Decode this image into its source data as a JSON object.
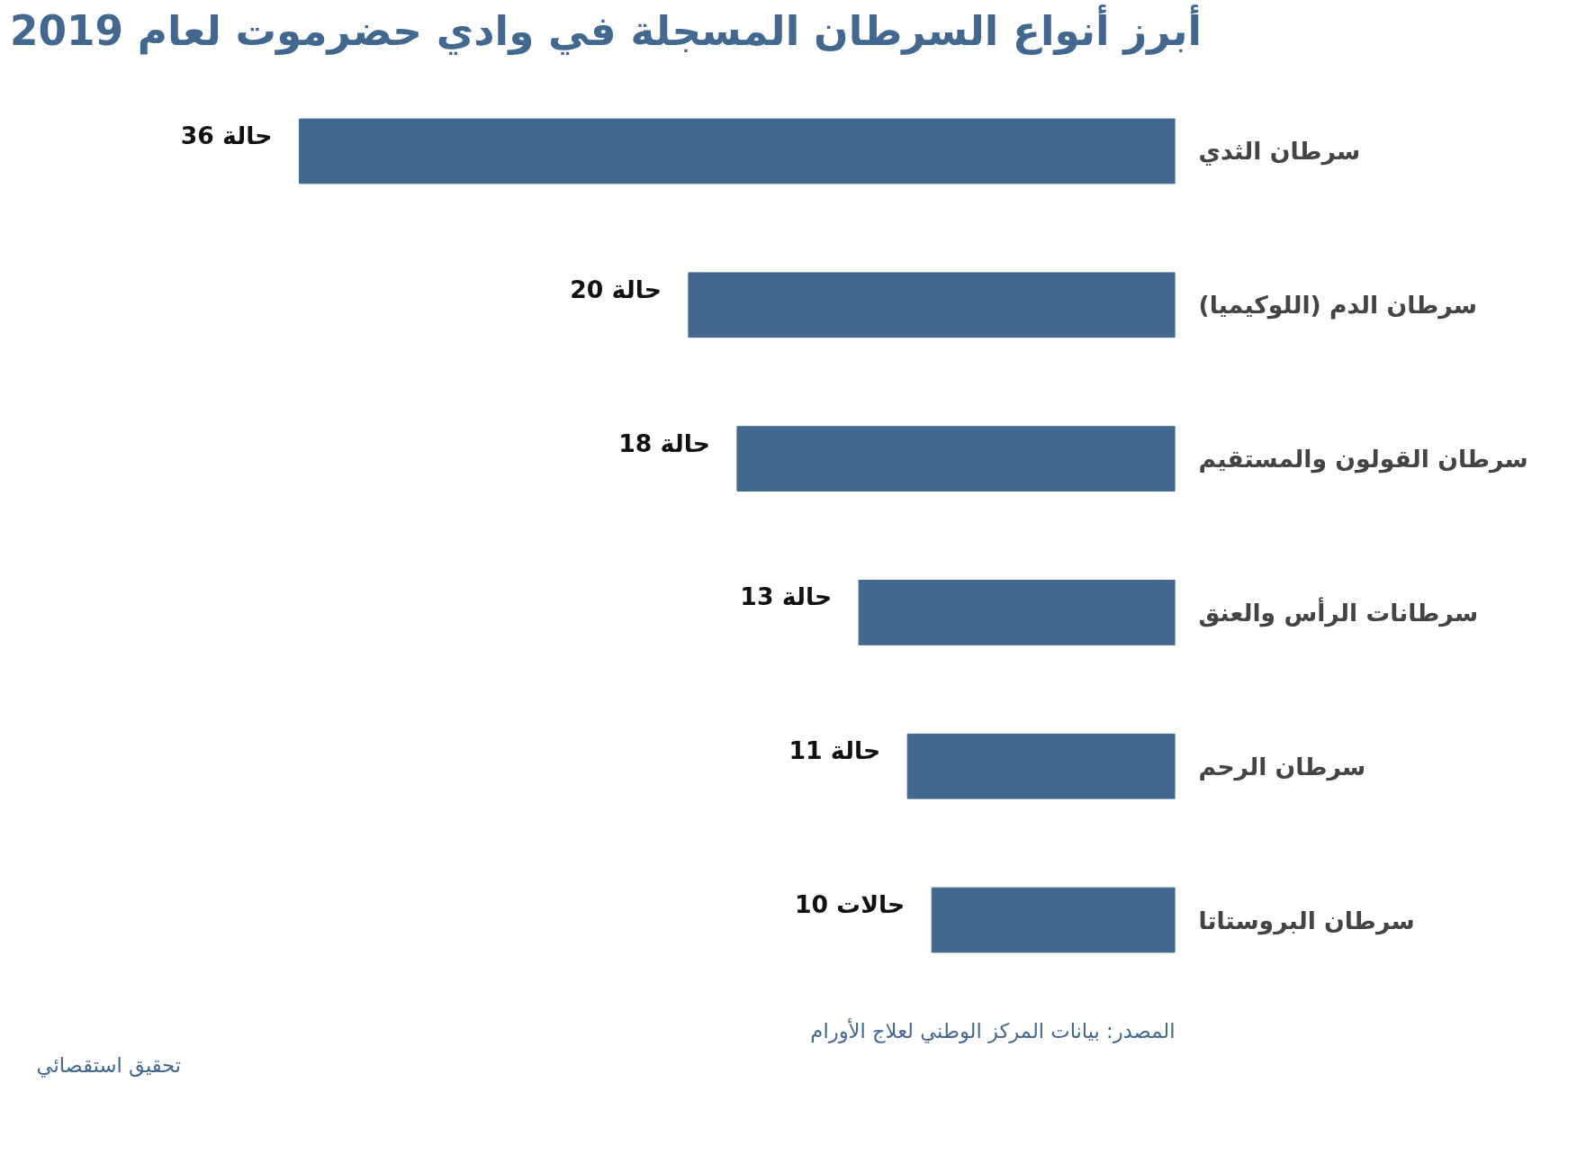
{
  "chart_data": {
    "type": "bar",
    "orientation": "horizontal",
    "title": "أبرز أنواع السرطان المسجلة في وادي حضرموت لعام 2019",
    "categories": [
      "سرطان الثدي",
      "سرطان الدم (اللوكيميا)",
      "سرطان القولون والمستقيم",
      "سرطانات الرأس والعنق",
      "سرطان الرحم",
      "سرطان البروستاتا"
    ],
    "values": [
      36,
      20,
      18,
      13,
      11,
      10
    ],
    "value_labels": [
      "36 حالة",
      "20 حالة",
      "18 حالة",
      "13 حالة",
      "11 حالة",
      "10 حالات"
    ],
    "color": "#426890",
    "grid": false,
    "annotations": [
      "المصدر: بيانات المركز الوطني لعلاج الأورام",
      "تحقيق استقصائي"
    ]
  }
}
